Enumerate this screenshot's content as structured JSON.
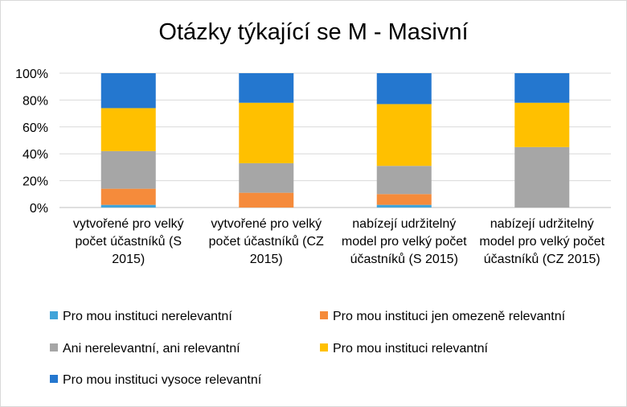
{
  "chart_data": {
    "type": "bar",
    "stacked": true,
    "percent": true,
    "title": "Otázky týkající se M - Masivní",
    "ylim": [
      0,
      100
    ],
    "yticks": [
      "0%",
      "20%",
      "40%",
      "60%",
      "80%",
      "100%"
    ],
    "categories": [
      "vytvořené pro velký počet účastníků (S 2015)",
      "vytvořené pro velký počet účastníků (CZ 2015)",
      "nabízejí udržitelný model pro velký počet účastníků (S 2015)",
      "nabízejí udržitelný model pro velký počet účastníků (CZ 2015)"
    ],
    "series": [
      {
        "name": "Pro mou instituci nerelevantní",
        "color": "#41a4d9",
        "values": [
          2,
          0,
          2,
          0
        ]
      },
      {
        "name": "Pro mou instituci jen omezeně relevantní",
        "color": "#f58b3b",
        "values": [
          12,
          11,
          8,
          0
        ]
      },
      {
        "name": "Ani nerelevantní, ani relevantní",
        "color": "#a6a6a6",
        "values": [
          28,
          22,
          21,
          45
        ]
      },
      {
        "name": "Pro mou instituci relevantní",
        "color": "#ffc000",
        "values": [
          32,
          45,
          46,
          33
        ]
      },
      {
        "name": "Pro mou instituci vysoce relevantní",
        "color": "#2477cf",
        "values": [
          26,
          22,
          23,
          22
        ]
      }
    ],
    "legend_position": "bottom",
    "grid": true
  }
}
